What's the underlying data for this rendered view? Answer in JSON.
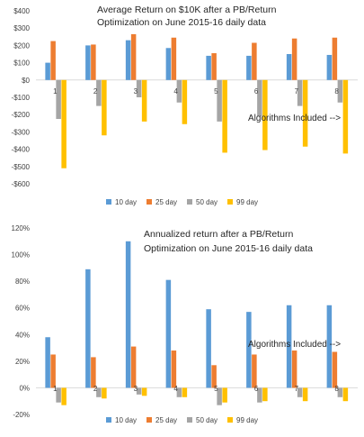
{
  "chart_data": [
    {
      "type": "bar",
      "title_lines": [
        "Average Return on  $10K after a PB/Return",
        "Optimization on June 2015-16 daily data"
      ],
      "annotation": "Algorithms Included -->",
      "categories": [
        "1",
        "2",
        "3",
        "4",
        "5",
        "6",
        "7",
        "8"
      ],
      "ylim": [
        -600,
        400
      ],
      "yticks": [
        400,
        300,
        200,
        100,
        0,
        -100,
        -200,
        -300,
        -400,
        -500,
        -600
      ],
      "ytick_labels": [
        "$400",
        "$300",
        "$200",
        "$100",
        "$0",
        "-$100",
        "-$200",
        "-$300",
        "-$400",
        "-$500",
        "-$600"
      ],
      "series": [
        {
          "name": "10 day",
          "color": "#5b9bd5",
          "values": [
            100,
            200,
            230,
            185,
            140,
            140,
            150,
            145
          ]
        },
        {
          "name": "25 day",
          "color": "#ed7d31",
          "values": [
            225,
            205,
            265,
            245,
            155,
            215,
            240,
            245
          ]
        },
        {
          "name": "50 day",
          "color": "#a5a5a5",
          "values": [
            -225,
            -150,
            -100,
            -130,
            -240,
            -210,
            -150,
            -130
          ]
        },
        {
          "name": "99 day",
          "color": "#ffc000",
          "values": [
            -510,
            -320,
            -240,
            -255,
            -420,
            -405,
            -385,
            -425
          ]
        }
      ]
    },
    {
      "type": "bar",
      "title_lines": [
        "Annualized return after a PB/Return",
        "Optimization on June 2015-16 daily data"
      ],
      "annotation": "Algorithms Included -->",
      "categories": [
        "1",
        "2",
        "3",
        "4",
        "5",
        "6",
        "7",
        "8"
      ],
      "ylim": [
        -20,
        120
      ],
      "yticks": [
        120,
        100,
        80,
        60,
        40,
        20,
        0,
        -20
      ],
      "ytick_labels": [
        "120%",
        "100%",
        "80%",
        "60%",
        "40%",
        "20%",
        "0%",
        "-20%"
      ],
      "series": [
        {
          "name": "10 day",
          "color": "#5b9bd5",
          "values": [
            38,
            89,
            110,
            81,
            59,
            57,
            62,
            62
          ]
        },
        {
          "name": "25 day",
          "color": "#ed7d31",
          "values": [
            25,
            23,
            31,
            28,
            17,
            25,
            28,
            27
          ]
        },
        {
          "name": "50 day",
          "color": "#a5a5a5",
          "values": [
            -11,
            -7,
            -5,
            -7,
            -13,
            -11,
            -7,
            -7
          ]
        },
        {
          "name": "99 day",
          "color": "#ffc000",
          "values": [
            -13,
            -8,
            -6,
            -7,
            -11,
            -10,
            -10,
            -10
          ]
        }
      ]
    }
  ]
}
